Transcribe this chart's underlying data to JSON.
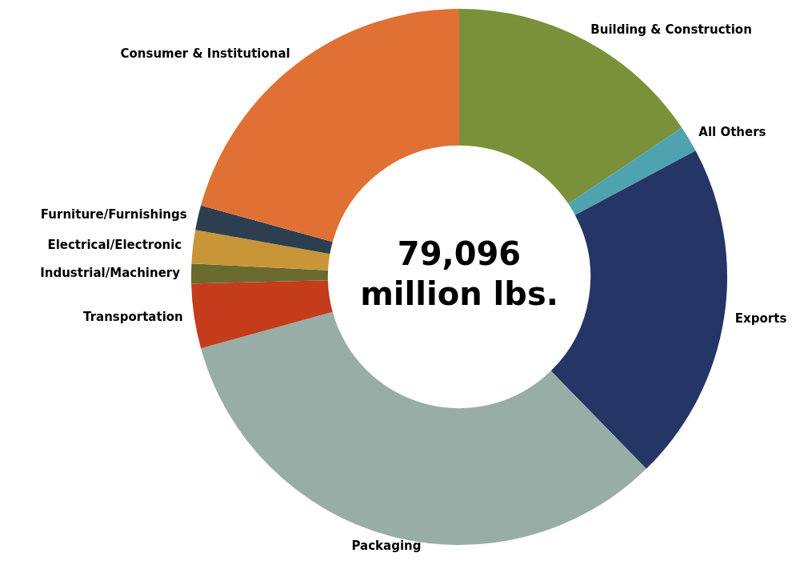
{
  "chart_data": {
    "type": "donut",
    "categories": [
      "Building & Construction",
      "All Others",
      "Exports",
      "Packaging",
      "Transportation",
      "Industrial/Machinery",
      "Electrical/Electronic",
      "Furniture/Furnishings",
      "Consumer & Institutional"
    ],
    "values": [
      15.6,
      1.6,
      20.5,
      33.0,
      3.9,
      1.2,
      2.0,
      1.5,
      20.7
    ],
    "colors": [
      "#7a9039",
      "#4fa3b0",
      "#253565",
      "#98ada6",
      "#c43c1c",
      "#6b6a2e",
      "#c89538",
      "#2c3e50",
      "#e07033"
    ],
    "annotations": [
      "79,096 million lbs."
    ],
    "legend": false
  }
}
